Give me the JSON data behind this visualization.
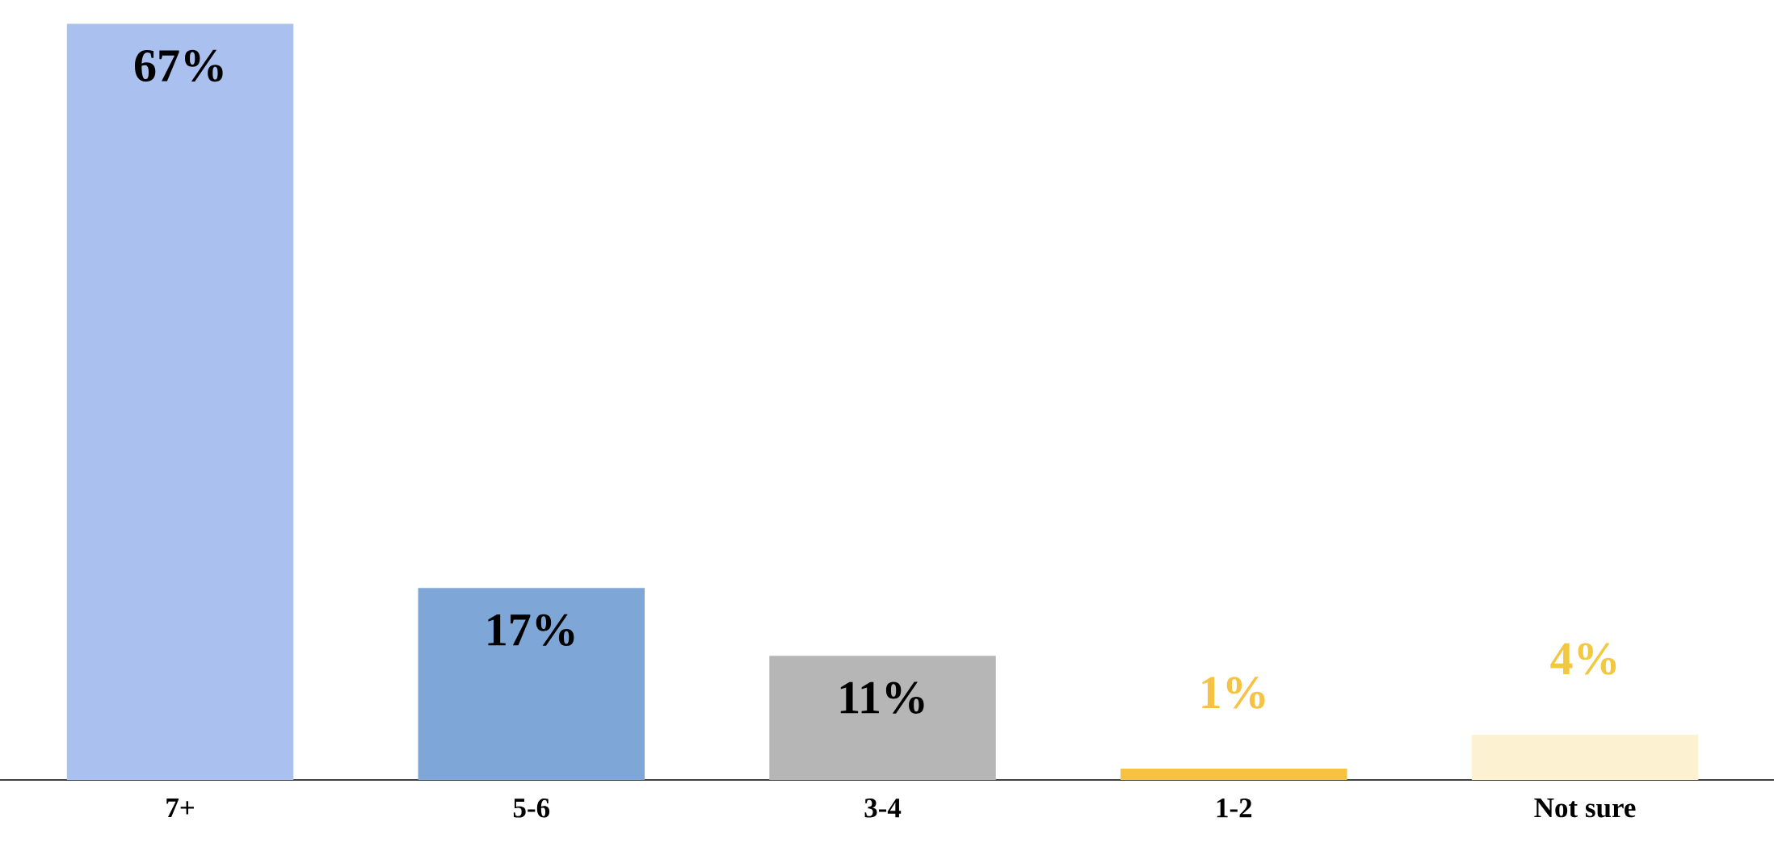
{
  "chart_data": {
    "type": "bar",
    "categories": [
      "7+",
      "5-6",
      "3-4",
      "1-2",
      "Not sure"
    ],
    "values": [
      67,
      17,
      11,
      1,
      4
    ],
    "colors": [
      "#aac0ee",
      "#7ea7d8",
      "#b6b6b6",
      "#f5c242",
      "#fcf2d2"
    ],
    "value_labels": [
      "67%",
      "17%",
      "11%",
      "1%",
      "4%"
    ]
  }
}
